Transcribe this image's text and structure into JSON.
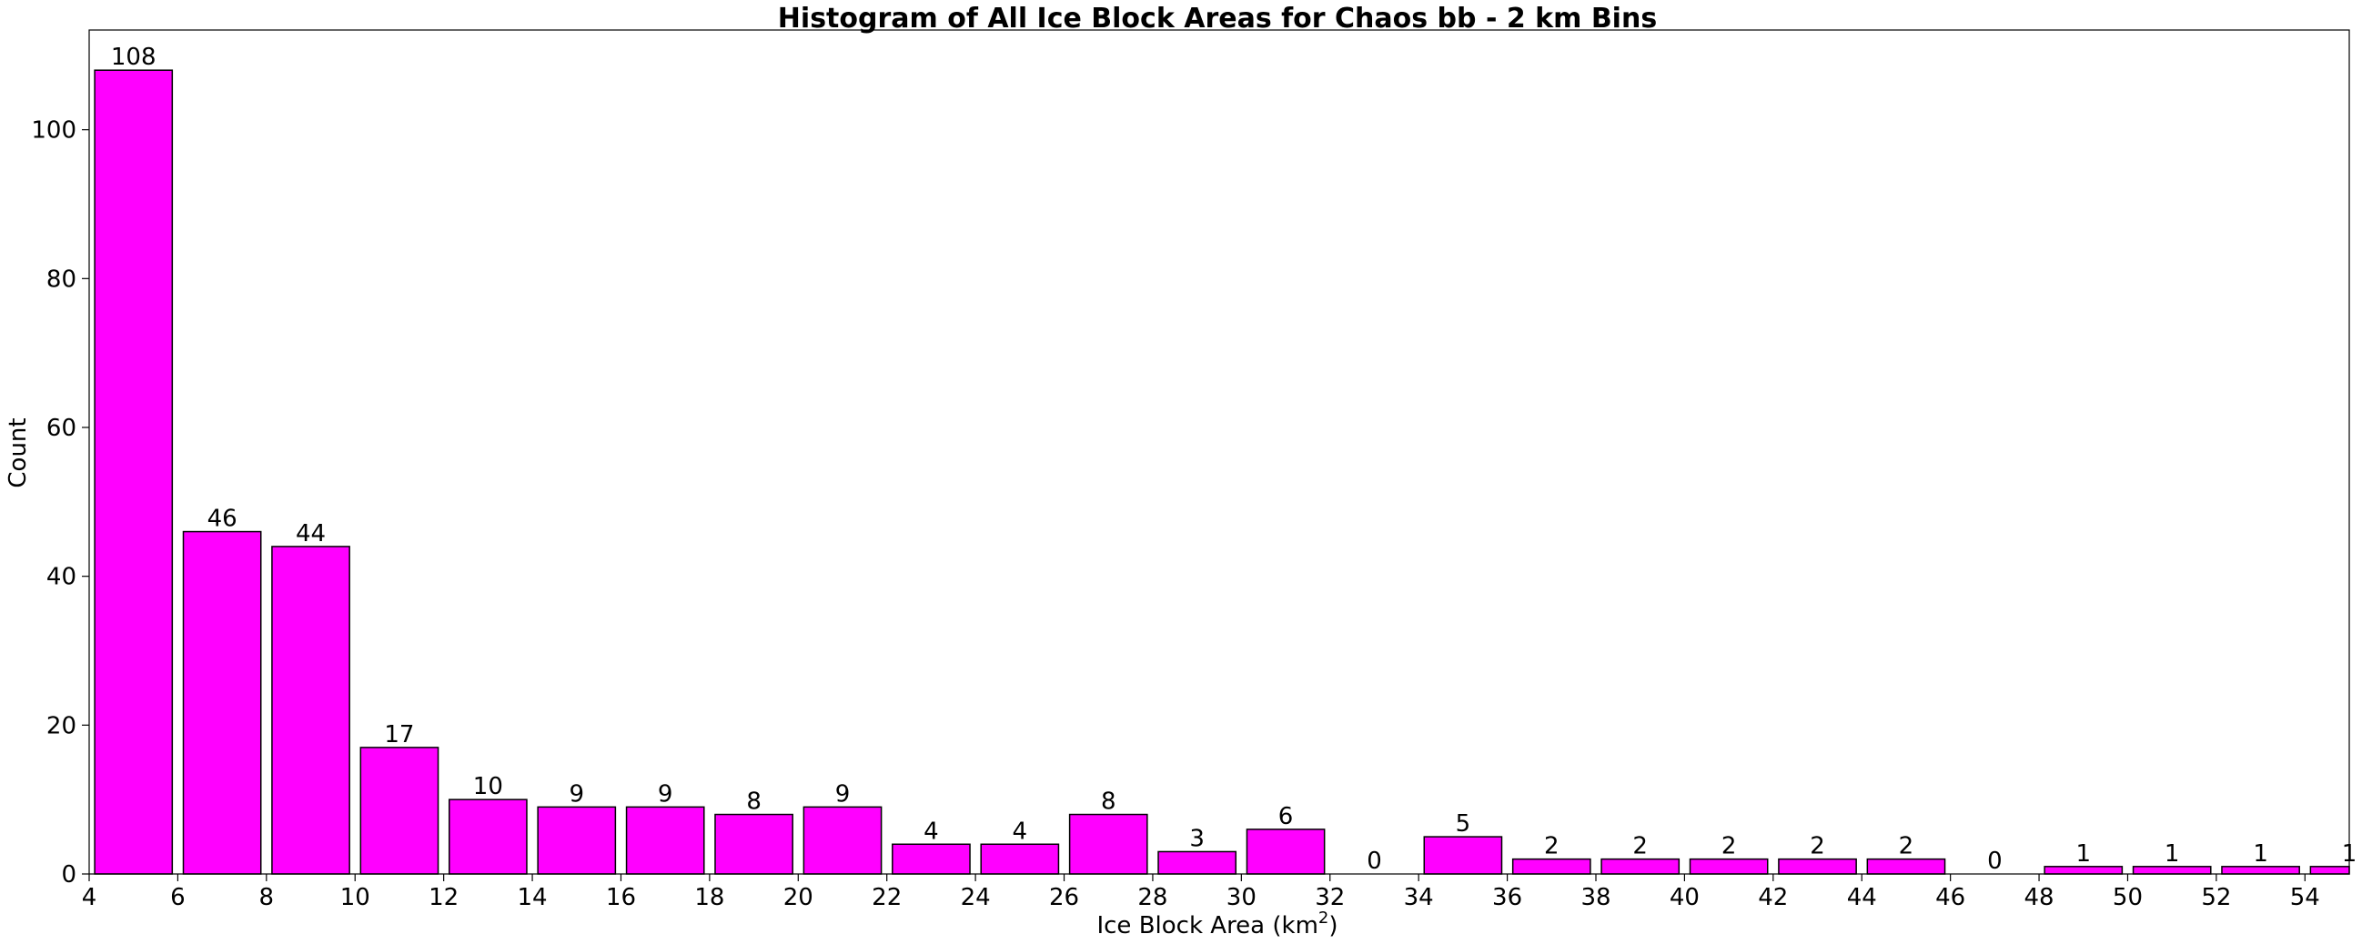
{
  "chart_data": {
    "type": "bar",
    "title": "Histogram of All Ice Block Areas for Chaos bb - 2 km Bins",
    "xlabel": "Ice Block Area (km",
    "xlabel_sup": "2",
    "xlabel_end": ")",
    "ylabel": "Count",
    "bar_color": "#ff00ff",
    "edge_color": "#000000",
    "xlim": [
      4,
      55
    ],
    "ylim": [
      0,
      113.4
    ],
    "x_ticks": [
      4,
      6,
      8,
      10,
      12,
      14,
      16,
      18,
      20,
      22,
      24,
      26,
      28,
      30,
      32,
      34,
      36,
      38,
      40,
      42,
      44,
      46,
      48,
      50,
      52,
      54
    ],
    "y_ticks": [
      0,
      20,
      40,
      60,
      80,
      100
    ],
    "bin_width": 2,
    "bins": [
      {
        "left": 4,
        "value": 108
      },
      {
        "left": 6,
        "value": 46
      },
      {
        "left": 8,
        "value": 44
      },
      {
        "left": 10,
        "value": 17
      },
      {
        "left": 12,
        "value": 10
      },
      {
        "left": 14,
        "value": 9
      },
      {
        "left": 16,
        "value": 9
      },
      {
        "left": 18,
        "value": 8
      },
      {
        "left": 20,
        "value": 9
      },
      {
        "left": 22,
        "value": 4
      },
      {
        "left": 24,
        "value": 4
      },
      {
        "left": 26,
        "value": 8
      },
      {
        "left": 28,
        "value": 3
      },
      {
        "left": 30,
        "value": 6
      },
      {
        "left": 32,
        "value": 0
      },
      {
        "left": 34,
        "value": 5
      },
      {
        "left": 36,
        "value": 2
      },
      {
        "left": 38,
        "value": 2
      },
      {
        "left": 40,
        "value": 2
      },
      {
        "left": 42,
        "value": 2
      },
      {
        "left": 44,
        "value": 2
      },
      {
        "left": 46,
        "value": 0
      },
      {
        "left": 48,
        "value": 1
      },
      {
        "left": 50,
        "value": 1
      },
      {
        "left": 52,
        "value": 1
      },
      {
        "left": 54,
        "value": 1
      }
    ],
    "grid": false,
    "legend": "none"
  }
}
